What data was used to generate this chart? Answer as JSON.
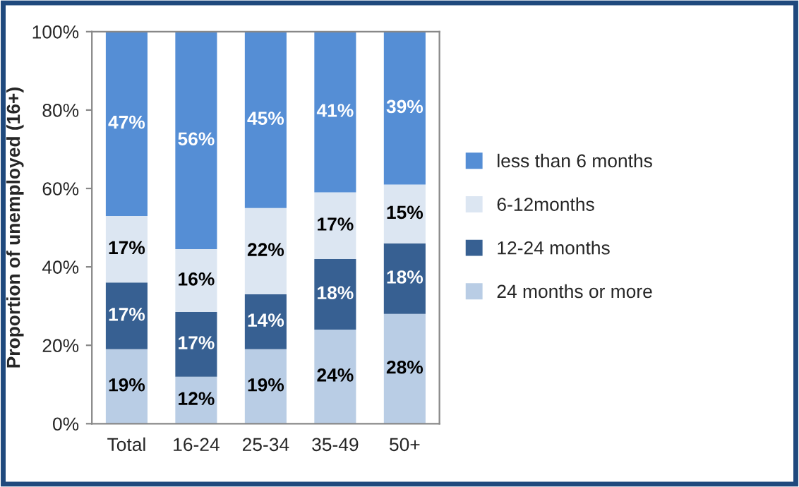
{
  "chart_data": {
    "type": "bar",
    "stacked": true,
    "ylabel": "Proportion of unemployed (16+)",
    "categories": [
      "Total",
      "16-24",
      "25-34",
      "35-49",
      "50+"
    ],
    "series": [
      {
        "name": "24 months or more",
        "color": "#b9cde5",
        "values": [
          19,
          12,
          19,
          24,
          28
        ],
        "value_labels": [
          "19%",
          "12%",
          "19%",
          "24%",
          "28%"
        ]
      },
      {
        "name": "12-24 months",
        "color": "#376092",
        "values": [
          17,
          16.5,
          14,
          18,
          18
        ],
        "value_labels": [
          "17%",
          "17%",
          "14%",
          "18%",
          "18%"
        ]
      },
      {
        "name": "6-12months",
        "color": "#dce6f2",
        "values": [
          17,
          16,
          22,
          17,
          15
        ],
        "value_labels": [
          "17%",
          "16%",
          "22%",
          "17%",
          "15%"
        ]
      },
      {
        "name": "less than 6 months",
        "color": "#558ed5",
        "values": [
          47,
          55.5,
          45,
          41,
          39
        ],
        "value_labels": [
          "47%",
          "56%",
          "45%",
          "41%",
          "39%"
        ]
      }
    ],
    "ylim": [
      0,
      100
    ],
    "yticks": [
      {
        "value": 0,
        "label": "0%"
      },
      {
        "value": 20,
        "label": "20%"
      },
      {
        "value": 40,
        "label": "40%"
      },
      {
        "value": 60,
        "label": "60%"
      },
      {
        "value": 80,
        "label": "80%"
      },
      {
        "value": 100,
        "label": "100%"
      }
    ],
    "grid": false,
    "legend": "right"
  }
}
